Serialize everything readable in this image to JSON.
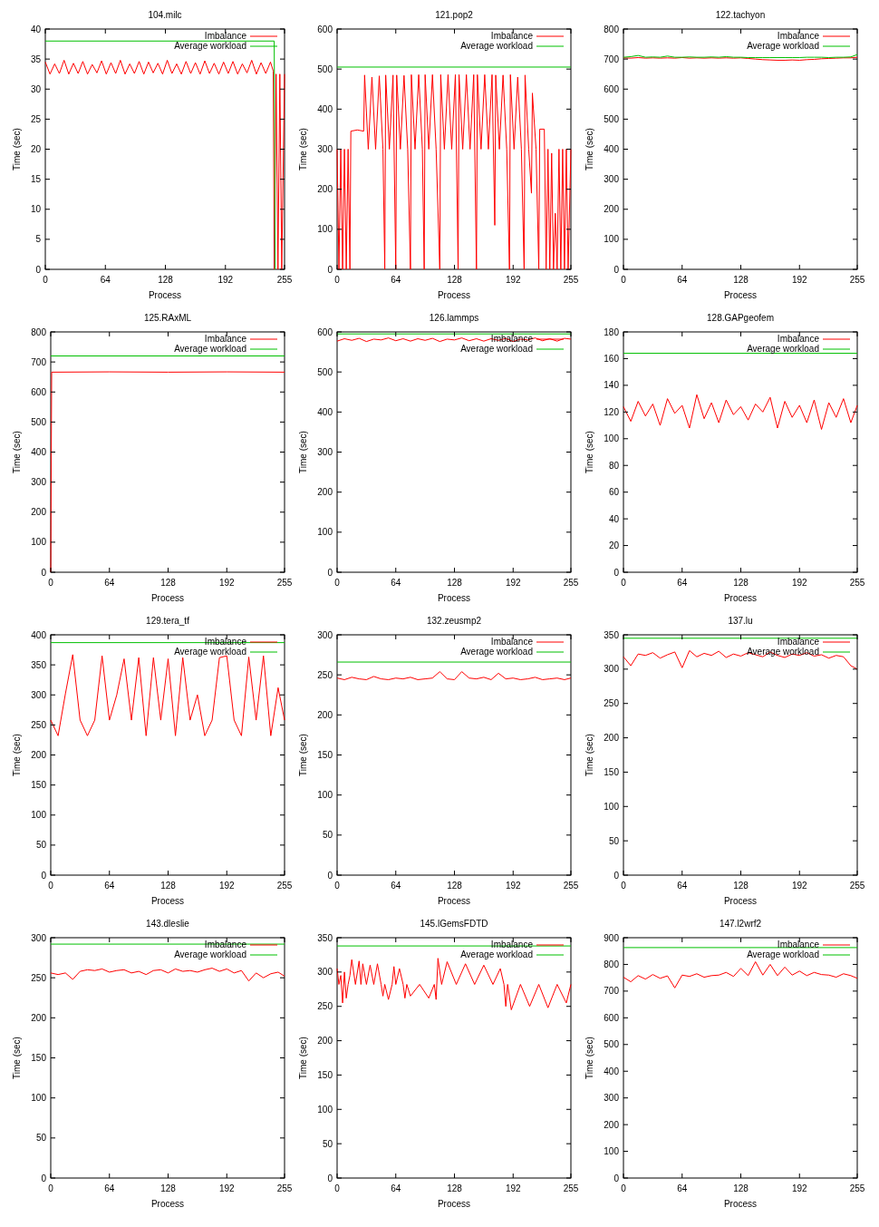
{
  "chart_data": [
    {
      "type": "line",
      "title": "104.milc",
      "xlabel": "Process",
      "ylabel": "Time (sec)",
      "xlim": [
        0,
        255
      ],
      "xticks": [
        0,
        64,
        128,
        192,
        255
      ],
      "ylim": [
        0,
        40
      ],
      "yticks": [
        0,
        5,
        10,
        15,
        20,
        25,
        30,
        35,
        40
      ],
      "legend": "top right",
      "x": [
        0,
        5,
        10,
        15,
        20,
        25,
        30,
        35,
        40,
        45,
        50,
        55,
        60,
        65,
        70,
        75,
        80,
        85,
        90,
        95,
        100,
        105,
        110,
        115,
        120,
        125,
        130,
        135,
        140,
        145,
        150,
        155,
        160,
        165,
        170,
        175,
        180,
        185,
        190,
        195,
        200,
        205,
        210,
        215,
        220,
        225,
        230,
        235,
        240,
        243,
        244,
        246,
        248,
        250,
        252,
        255
      ],
      "series": [
        {
          "name": "Imbalance",
          "color": "#ff0000",
          "values": [
            34.5,
            32.5,
            34.2,
            32.6,
            34.8,
            32.5,
            34.3,
            32.6,
            34.6,
            32.5,
            34.1,
            32.7,
            34.7,
            32.5,
            34.4,
            32.6,
            34.8,
            32.5,
            34.2,
            32.6,
            34.6,
            32.5,
            34.5,
            32.7,
            34.3,
            32.5,
            34.8,
            32.6,
            34.2,
            32.5,
            34.6,
            32.6,
            34.4,
            32.5,
            34.7,
            32.6,
            34.3,
            32.5,
            34.5,
            32.6,
            34.6,
            32.5,
            34.2,
            32.7,
            34.8,
            32.5,
            34.4,
            32.6,
            34.5,
            33,
            0,
            32.5,
            0,
            32.5,
            0,
            32.5
          ]
        },
        {
          "name": "Average workload",
          "color": "#00c000",
          "x": [
            0,
            244,
            245
          ],
          "values": [
            38,
            38,
            0
          ]
        }
      ]
    },
    {
      "type": "line",
      "title": "121.pop2",
      "xlabel": "Process",
      "ylabel": "Time (sec)",
      "xlim": [
        0,
        255
      ],
      "xticks": [
        0,
        64,
        128,
        192,
        255
      ],
      "ylim": [
        0,
        600
      ],
      "yticks": [
        0,
        100,
        200,
        300,
        400,
        500,
        600
      ],
      "legend": "top right",
      "x": [
        0,
        2,
        4,
        6,
        8,
        10,
        12,
        14,
        15,
        22,
        29,
        30,
        34,
        38,
        42,
        46,
        50,
        52,
        53,
        57,
        61,
        64,
        65,
        69,
        73,
        77,
        80,
        81,
        85,
        89,
        93,
        95,
        96,
        100,
        104,
        108,
        112,
        113,
        117,
        121,
        125,
        129,
        132,
        133,
        137,
        141,
        145,
        149,
        152,
        153,
        157,
        161,
        165,
        169,
        172,
        173,
        177,
        181,
        185,
        188,
        189,
        193,
        197,
        201,
        204,
        205,
        209,
        212,
        213,
        217,
        220,
        221,
        226,
        228,
        230,
        232,
        234,
        236,
        238,
        240,
        242,
        244,
        246,
        248,
        250,
        252,
        255
      ],
      "series": [
        {
          "name": "Imbalance",
          "color": "#ff0000",
          "values": [
            300,
            0,
            300,
            0,
            300,
            0,
            300,
            0,
            345,
            348,
            345,
            485,
            300,
            480,
            300,
            483,
            300,
            0,
            485,
            300,
            485,
            0,
            485,
            300,
            484,
            300,
            0,
            486,
            300,
            486,
            300,
            0,
            486,
            300,
            486,
            300,
            0,
            486,
            300,
            486,
            300,
            486,
            0,
            486,
            300,
            486,
            300,
            486,
            0,
            486,
            300,
            486,
            300,
            486,
            110,
            485,
            300,
            485,
            300,
            0,
            486,
            300,
            480,
            300,
            0,
            485,
            300,
            190,
            440,
            300,
            0,
            350,
            350,
            0,
            300,
            0,
            290,
            0,
            140,
            0,
            300,
            0,
            300,
            0,
            300,
            0,
            300
          ]
        },
        {
          "name": "Average workload",
          "color": "#00c000",
          "x": [
            0,
            255
          ],
          "values": [
            505,
            505
          ]
        }
      ]
    },
    {
      "type": "line",
      "title": "122.tachyon",
      "xlabel": "Process",
      "ylabel": "Time (sec)",
      "xlim": [
        0,
        255
      ],
      "xticks": [
        0,
        64,
        128,
        192,
        255
      ],
      "ylim": [
        0,
        800
      ],
      "yticks": [
        0,
        100,
        200,
        300,
        400,
        500,
        600,
        700,
        800
      ],
      "legend": "top right",
      "x": [
        0,
        8,
        16,
        24,
        32,
        40,
        48,
        56,
        64,
        72,
        80,
        88,
        96,
        104,
        112,
        120,
        128,
        136,
        144,
        152,
        160,
        168,
        176,
        184,
        192,
        200,
        208,
        216,
        224,
        232,
        240,
        248,
        255
      ],
      "series": [
        {
          "name": "Imbalance",
          "color": "#ff0000",
          "values": [
            704,
            703,
            705,
            703,
            704,
            703,
            704,
            703,
            705,
            703,
            704,
            703,
            704,
            703,
            704,
            703,
            704,
            702,
            700,
            698,
            697,
            696,
            696,
            697,
            696,
            698,
            699,
            701,
            702,
            703,
            704,
            704,
            706
          ]
        },
        {
          "name": "Average workload",
          "color": "#00c000",
          "values": [
            706,
            708,
            712,
            706,
            707,
            706,
            710,
            706,
            706,
            707,
            706,
            706,
            707,
            706,
            708,
            706,
            706,
            705,
            705,
            705,
            705,
            705,
            705,
            705,
            705,
            706,
            706,
            706,
            705,
            706,
            706,
            707,
            715
          ]
        }
      ]
    },
    {
      "type": "line",
      "title": "125.RAxML",
      "xlabel": "Process",
      "ylabel": "Time (sec)",
      "xlim": [
        0,
        255
      ],
      "xticks": [
        0,
        64,
        128,
        192,
        255
      ],
      "ylim": [
        0,
        800
      ],
      "yticks": [
        0,
        100,
        200,
        300,
        400,
        500,
        600,
        700,
        800
      ],
      "legend": "top right",
      "x": [
        0,
        1,
        64,
        128,
        192,
        255
      ],
      "series": [
        {
          "name": "Imbalance",
          "color": "#ff0000",
          "values": [
            0,
            666,
            667,
            666,
            667,
            666
          ]
        },
        {
          "name": "Average workload",
          "color": "#00c000",
          "x": [
            0,
            255
          ],
          "values": [
            720,
            720
          ]
        }
      ]
    },
    {
      "type": "line",
      "title": "126.lammps",
      "xlabel": "Process",
      "ylabel": "Time (sec)",
      "xlim": [
        0,
        255
      ],
      "xticks": [
        0,
        64,
        128,
        192,
        255
      ],
      "ylim": [
        0,
        600
      ],
      "yticks": [
        0,
        100,
        200,
        300,
        400,
        500,
        600
      ],
      "legend": "top right",
      "x": [
        0,
        8,
        16,
        24,
        32,
        40,
        48,
        56,
        64,
        72,
        80,
        88,
        96,
        104,
        112,
        120,
        128,
        136,
        144,
        152,
        160,
        168,
        176,
        184,
        192,
        200,
        208,
        216,
        224,
        232,
        240,
        248,
        255
      ],
      "series": [
        {
          "name": "Imbalance",
          "color": "#ff0000",
          "values": [
            577,
            583,
            579,
            584,
            576,
            582,
            580,
            585,
            578,
            583,
            577,
            583,
            579,
            584,
            576,
            582,
            580,
            585,
            578,
            583,
            577,
            583,
            579,
            584,
            576,
            582,
            580,
            585,
            578,
            583,
            577,
            584,
            582
          ]
        },
        {
          "name": "Average workload",
          "color": "#00c000",
          "x": [
            0,
            255
          ],
          "values": [
            595,
            595
          ]
        }
      ]
    },
    {
      "type": "line",
      "title": "128.GAPgeofem",
      "xlabel": "Process",
      "ylabel": "Time (sec)",
      "xlim": [
        0,
        255
      ],
      "xticks": [
        0,
        64,
        128,
        192,
        255
      ],
      "ylim": [
        0,
        180
      ],
      "yticks": [
        0,
        20,
        40,
        60,
        80,
        100,
        120,
        140,
        160,
        180
      ],
      "legend": "top right",
      "x": [
        0,
        8,
        16,
        24,
        32,
        40,
        48,
        56,
        64,
        72,
        80,
        88,
        96,
        104,
        112,
        120,
        128,
        136,
        144,
        152,
        160,
        168,
        176,
        184,
        192,
        200,
        208,
        216,
        224,
        232,
        240,
        248,
        255
      ],
      "series": [
        {
          "name": "Imbalance",
          "color": "#ff0000",
          "values": [
            124,
            113,
            128,
            117,
            126,
            110,
            130,
            119,
            125,
            108,
            133,
            115,
            127,
            112,
            129,
            118,
            124,
            114,
            126,
            120,
            131,
            108,
            128,
            116,
            125,
            112,
            129,
            107,
            127,
            116,
            130,
            112,
            125
          ]
        },
        {
          "name": "Average workload",
          "color": "#00c000",
          "x": [
            0,
            255
          ],
          "values": [
            164,
            164
          ]
        }
      ]
    },
    {
      "type": "line",
      "title": "129.tera_tf",
      "xlabel": "Process",
      "ylabel": "Time (sec)",
      "xlim": [
        0,
        255
      ],
      "xticks": [
        0,
        64,
        128,
        192,
        255
      ],
      "ylim": [
        0,
        400
      ],
      "yticks": [
        0,
        50,
        100,
        150,
        200,
        250,
        300,
        350,
        400
      ],
      "legend": "top right",
      "x": [
        0,
        8,
        16,
        24,
        32,
        40,
        48,
        56,
        64,
        72,
        80,
        88,
        96,
        104,
        112,
        120,
        128,
        136,
        144,
        152,
        160,
        168,
        176,
        184,
        192,
        200,
        208,
        216,
        224,
        232,
        240,
        248,
        255
      ],
      "series": [
        {
          "name": "Imbalance",
          "color": "#ff0000",
          "values": [
            258,
            232,
            302,
            367,
            258,
            232,
            258,
            365,
            258,
            300,
            360,
            258,
            362,
            232,
            362,
            258,
            360,
            232,
            362,
            258,
            300,
            232,
            258,
            362,
            365,
            258,
            232,
            363,
            258,
            365,
            232,
            312,
            258
          ]
        },
        {
          "name": "Average workload",
          "color": "#00c000",
          "x": [
            0,
            255
          ],
          "values": [
            387,
            387
          ]
        }
      ]
    },
    {
      "type": "line",
      "title": "132.zeusmp2",
      "xlabel": "Process",
      "ylabel": "Time (sec)",
      "xlim": [
        0,
        255
      ],
      "xticks": [
        0,
        64,
        128,
        192,
        255
      ],
      "ylim": [
        0,
        300
      ],
      "yticks": [
        0,
        50,
        100,
        150,
        200,
        250,
        300
      ],
      "legend": "top right",
      "x": [
        0,
        8,
        16,
        24,
        32,
        40,
        48,
        56,
        64,
        72,
        80,
        88,
        96,
        104,
        112,
        120,
        128,
        136,
        144,
        152,
        160,
        168,
        176,
        184,
        192,
        200,
        208,
        216,
        224,
        232,
        240,
        248,
        255
      ],
      "series": [
        {
          "name": "Imbalance",
          "color": "#ff0000",
          "values": [
            246,
            244,
            247,
            245,
            244,
            248,
            245,
            244,
            246,
            245,
            247,
            244,
            245,
            246,
            254,
            245,
            244,
            254,
            246,
            245,
            247,
            244,
            252,
            245,
            246,
            244,
            245,
            247,
            244,
            245,
            246,
            244,
            246
          ]
        },
        {
          "name": "Average workload",
          "color": "#00c000",
          "x": [
            0,
            255
          ],
          "values": [
            266,
            266
          ]
        }
      ]
    },
    {
      "type": "line",
      "title": "137.lu",
      "xlabel": "Process",
      "ylabel": "Time (sec)",
      "xlim": [
        0,
        255
      ],
      "xticks": [
        0,
        64,
        128,
        192,
        255
      ],
      "ylim": [
        0,
        350
      ],
      "yticks": [
        0,
        50,
        100,
        150,
        200,
        250,
        300,
        350
      ],
      "legend": "top right",
      "x": [
        0,
        8,
        16,
        24,
        32,
        40,
        48,
        56,
        64,
        72,
        80,
        88,
        96,
        104,
        112,
        120,
        128,
        136,
        144,
        152,
        160,
        168,
        176,
        184,
        192,
        200,
        208,
        216,
        224,
        232,
        240,
        248,
        255
      ],
      "series": [
        {
          "name": "Imbalance",
          "color": "#ff0000",
          "values": [
            318,
            305,
            322,
            320,
            324,
            316,
            321,
            325,
            302,
            327,
            318,
            323,
            320,
            326,
            317,
            322,
            319,
            324,
            321,
            318,
            325,
            320,
            317,
            322,
            320,
            324,
            319,
            321,
            316,
            320,
            318,
            305,
            300
          ]
        },
        {
          "name": "Average workload",
          "color": "#00c000",
          "x": [
            0,
            255
          ],
          "values": [
            345,
            345
          ]
        }
      ]
    },
    {
      "type": "line",
      "title": "143.dleslie",
      "xlabel": "Process",
      "ylabel": "Time (sec)",
      "xlim": [
        0,
        255
      ],
      "xticks": [
        0,
        64,
        128,
        192,
        255
      ],
      "ylim": [
        0,
        300
      ],
      "yticks": [
        0,
        50,
        100,
        150,
        200,
        250,
        300
      ],
      "legend": "top right",
      "x": [
        0,
        8,
        16,
        24,
        32,
        40,
        48,
        56,
        64,
        72,
        80,
        88,
        96,
        104,
        112,
        120,
        128,
        136,
        144,
        152,
        160,
        168,
        176,
        184,
        192,
        200,
        208,
        216,
        224,
        232,
        240,
        248,
        255
      ],
      "series": [
        {
          "name": "Imbalance",
          "color": "#ff0000",
          "values": [
            256,
            254,
            256,
            248,
            258,
            260,
            259,
            261,
            257,
            259,
            260,
            256,
            258,
            254,
            259,
            260,
            256,
            261,
            258,
            259,
            257,
            260,
            262,
            258,
            261,
            256,
            259,
            246,
            256,
            250,
            255,
            257,
            252
          ]
        },
        {
          "name": "Average workload",
          "color": "#00c000",
          "x": [
            0,
            255
          ],
          "values": [
            292,
            292
          ]
        }
      ]
    },
    {
      "type": "line",
      "title": "145.lGemsFDTD",
      "xlabel": "Process",
      "ylabel": "Time (sec)",
      "xlim": [
        0,
        255
      ],
      "xticks": [
        0,
        64,
        128,
        192,
        255
      ],
      "ylim": [
        0,
        350
      ],
      "yticks": [
        0,
        50,
        100,
        150,
        200,
        250,
        300,
        350
      ],
      "legend": "top right",
      "x": [
        0,
        2,
        4,
        6,
        8,
        10,
        12,
        14,
        16,
        20,
        24,
        26,
        28,
        32,
        36,
        40,
        44,
        48,
        50,
        52,
        56,
        60,
        62,
        64,
        68,
        72,
        74,
        76,
        80,
        90,
        100,
        106,
        108,
        110,
        114,
        120,
        130,
        140,
        150,
        160,
        170,
        178,
        182,
        184,
        186,
        190,
        200,
        210,
        220,
        230,
        240,
        250,
        255
      ],
      "series": [
        {
          "name": "Imbalance",
          "color": "#ff0000",
          "values": [
            305,
            282,
            295,
            255,
            300,
            262,
            282,
            295,
            318,
            282,
            316,
            282,
            312,
            282,
            310,
            282,
            312,
            282,
            265,
            282,
            260,
            282,
            308,
            282,
            305,
            282,
            262,
            282,
            265,
            282,
            262,
            282,
            260,
            320,
            282,
            315,
            282,
            312,
            282,
            310,
            282,
            305,
            282,
            250,
            282,
            245,
            282,
            250,
            282,
            248,
            282,
            255,
            282
          ]
        },
        {
          "name": "Average workload",
          "color": "#00c000",
          "x": [
            0,
            255
          ],
          "values": [
            338,
            338
          ]
        }
      ]
    },
    {
      "type": "line",
      "title": "147.l2wrf2",
      "xlabel": "Process",
      "ylabel": "Time (sec)",
      "xlim": [
        0,
        255
      ],
      "xticks": [
        0,
        64,
        128,
        192,
        255
      ],
      "ylim": [
        0,
        900
      ],
      "yticks": [
        0,
        100,
        200,
        300,
        400,
        500,
        600,
        700,
        800,
        900
      ],
      "legend": "top right",
      "x": [
        0,
        8,
        16,
        24,
        32,
        40,
        48,
        56,
        64,
        72,
        80,
        88,
        96,
        104,
        112,
        120,
        128,
        136,
        144,
        152,
        160,
        168,
        176,
        184,
        192,
        200,
        208,
        216,
        224,
        232,
        240,
        248,
        255
      ],
      "series": [
        {
          "name": "Imbalance",
          "color": "#ff0000",
          "values": [
            752,
            735,
            758,
            745,
            762,
            748,
            757,
            712,
            760,
            755,
            765,
            752,
            758,
            760,
            770,
            755,
            785,
            758,
            810,
            760,
            800,
            758,
            790,
            760,
            775,
            758,
            770,
            762,
            760,
            752,
            765,
            758,
            748
          ]
        },
        {
          "name": "Average workload",
          "color": "#00c000",
          "x": [
            0,
            255
          ],
          "values": [
            863,
            863
          ]
        }
      ]
    }
  ]
}
